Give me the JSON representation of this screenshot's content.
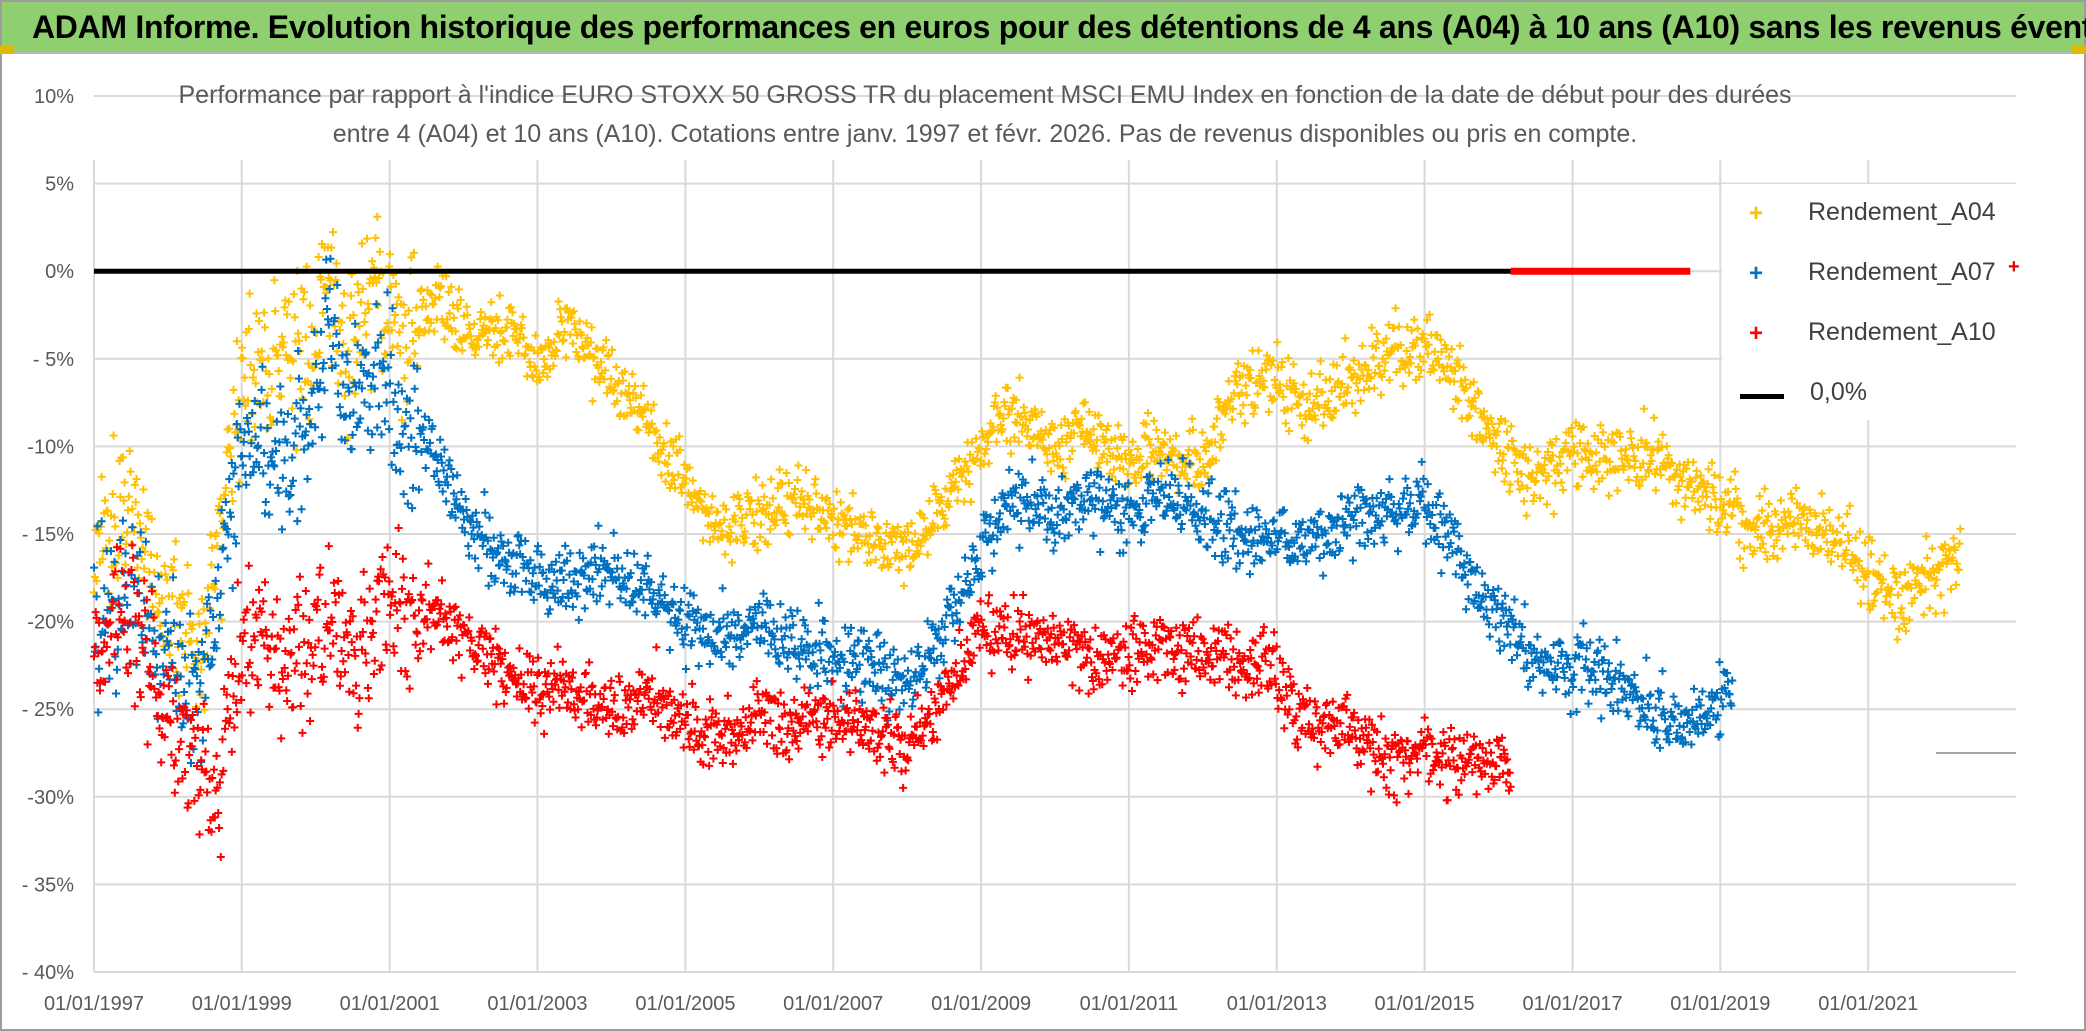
{
  "banner": {
    "text": "ADAM Informe. Evolution historique des performances en euros pour des détentions de 4 ans (A04) à 10 ans (A10) sans les revenus éventuels"
  },
  "chart_data": {
    "type": "scatter",
    "title_line1": "Performance par rapport à l'indice EURO STOXX 50 GROSS TR  du placement MSCI EMU Index en fonction de la date de début pour des durées",
    "title_line2": "entre 4 (A04) et 10 ans (A10). Cotations entre janv. 1997 et févr. 2026. Pas de revenus disponibles ou pris en compte.",
    "ylim": [
      -40,
      10
    ],
    "y_ticks": [
      "10%",
      "5%",
      "0%",
      "- 5%",
      "-10%",
      "- 15%",
      "-20%",
      "- 25%",
      "-30%",
      "- 35%",
      "- 40%"
    ],
    "x_ticks": [
      "01/01/1997",
      "01/01/1999",
      "01/01/2001",
      "01/01/2003",
      "01/01/2005",
      "01/01/2007",
      "01/01/2009",
      "01/01/2011",
      "01/01/2013",
      "01/01/2015",
      "01/01/2017",
      "01/01/2019",
      "01/01/2021"
    ],
    "x_range": [
      "1997-01-01",
      "2023-01-01"
    ],
    "marker": "+",
    "grid": true,
    "legend_position": "top-right",
    "legend": {
      "a04": "Rendement_A04",
      "a07": "Rendement_A07",
      "a10": "Rendement_A10",
      "zero": "0,0%"
    },
    "colors": {
      "a04": "#ffc000",
      "a07": "#0070c0",
      "a10": "#ff0000",
      "zero": "#000000",
      "grid": "#d9d9d9",
      "axis_text": "#595959"
    },
    "series": [
      {
        "name": "Rendement_A04",
        "end": "2022-04-01",
        "x": [
          "1997-01-01",
          "1997-07-01",
          "1998-01-01",
          "1998-06-01",
          "1998-09-01",
          "1999-01-01",
          "1999-06-01",
          "1999-12-01",
          "2000-03-01",
          "2000-06-01",
          "2000-10-01",
          "2001-03-01",
          "2001-09-01",
          "2002-03-01",
          "2002-09-01",
          "2003-01-01",
          "2003-06-01",
          "2004-01-01",
          "2004-06-01",
          "2005-01-01",
          "2005-06-01",
          "2006-01-01",
          "2006-06-01",
          "2007-01-01",
          "2007-06-01",
          "2008-01-01",
          "2008-06-01",
          "2009-01-01",
          "2009-06-01",
          "2010-01-01",
          "2010-06-01",
          "2011-01-01",
          "2011-06-01",
          "2012-01-01",
          "2012-06-01",
          "2013-01-01",
          "2013-06-01",
          "2014-01-01",
          "2014-06-01",
          "2015-01-01",
          "2015-06-01",
          "2016-01-01",
          "2016-06-01",
          "2017-01-01",
          "2017-06-01",
          "2018-01-01",
          "2018-06-01",
          "2019-01-01",
          "2019-06-01",
          "2020-01-01",
          "2020-06-01",
          "2021-01-01",
          "2021-06-01",
          "2022-01-01",
          "2022-04-01"
        ],
        "y": [
          -17,
          -13,
          -20,
          -21,
          -16,
          -7,
          -5,
          -4,
          0,
          -6,
          -1,
          -3,
          -2,
          -4,
          -3,
          -5,
          -3,
          -6,
          -8,
          -12,
          -15,
          -14,
          -13,
          -14,
          -15,
          -16,
          -14,
          -10,
          -8,
          -10,
          -9,
          -11,
          -10,
          -11,
          -7,
          -6,
          -8,
          -6,
          -5,
          -4,
          -6,
          -10,
          -12,
          -10,
          -11,
          -10,
          -12,
          -13,
          -15,
          -14,
          -15,
          -17,
          -19,
          -17,
          -16
        ]
      },
      {
        "name": "Rendement_A07",
        "end": "2019-03-01",
        "x": [
          "1997-01-01",
          "1997-07-01",
          "1998-01-01",
          "1998-06-01",
          "1998-09-01",
          "1999-01-01",
          "1999-06-01",
          "1999-12-01",
          "2000-03-01",
          "2000-06-01",
          "2000-10-01",
          "2001-03-01",
          "2001-09-01",
          "2002-03-01",
          "2002-09-01",
          "2003-01-01",
          "2003-06-01",
          "2004-01-01",
          "2004-06-01",
          "2005-01-01",
          "2005-06-01",
          "2006-01-01",
          "2006-06-01",
          "2007-01-01",
          "2007-06-01",
          "2008-01-01",
          "2008-06-01",
          "2009-01-01",
          "2009-06-01",
          "2010-01-01",
          "2010-06-01",
          "2011-01-01",
          "2011-06-01",
          "2012-01-01",
          "2012-06-01",
          "2013-01-01",
          "2013-06-01",
          "2014-01-01",
          "2014-06-01",
          "2015-01-01",
          "2015-06-01",
          "2016-01-01",
          "2016-06-01",
          "2017-01-01",
          "2017-06-01",
          "2018-01-01",
          "2018-06-01",
          "2019-01-01",
          "2019-03-01"
        ],
        "y": [
          -20,
          -18,
          -22,
          -24,
          -19,
          -10,
          -11,
          -9,
          -4,
          -8,
          -6,
          -8,
          -11,
          -15,
          -17,
          -17,
          -18,
          -17,
          -18,
          -20,
          -21,
          -20,
          -21,
          -22,
          -22,
          -24,
          -21,
          -16,
          -13,
          -14,
          -13,
          -14,
          -13,
          -14,
          -15,
          -15,
          -16,
          -14,
          -14,
          -13,
          -16,
          -20,
          -22,
          -23,
          -23,
          -25,
          -26,
          -25,
          -24
        ]
      },
      {
        "name": "Rendement_A10",
        "end": "2016-03-01",
        "x": [
          "1997-01-01",
          "1997-07-01",
          "1998-01-01",
          "1998-06-01",
          "1998-09-01",
          "1999-01-01",
          "1999-06-01",
          "1999-12-01",
          "2000-03-01",
          "2000-06-01",
          "2000-10-01",
          "2001-03-01",
          "2001-09-01",
          "2002-03-01",
          "2002-09-01",
          "2003-01-01",
          "2003-06-01",
          "2004-01-01",
          "2004-06-01",
          "2005-01-01",
          "2005-06-01",
          "2006-01-01",
          "2006-06-01",
          "2007-01-01",
          "2007-06-01",
          "2008-01-01",
          "2008-06-01",
          "2009-01-01",
          "2009-06-01",
          "2010-01-01",
          "2010-06-01",
          "2011-01-01",
          "2011-06-01",
          "2012-01-01",
          "2012-06-01",
          "2013-01-01",
          "2013-06-01",
          "2014-01-01",
          "2014-06-01",
          "2015-01-01",
          "2015-06-01",
          "2016-01-01",
          "2016-03-01"
        ],
        "y": [
          -22,
          -19,
          -25,
          -28,
          -30,
          -20,
          -22,
          -23,
          -20,
          -21,
          -21,
          -19,
          -20,
          -21,
          -23,
          -24,
          -24,
          -25,
          -24,
          -26,
          -27,
          -25,
          -26,
          -25,
          -26,
          -27,
          -25,
          -20,
          -21,
          -21,
          -22,
          -22,
          -21,
          -22,
          -22,
          -23,
          -26,
          -26,
          -28,
          -27,
          -28,
          -28,
          -29
        ]
      },
      {
        "name": "0,0%",
        "x": [
          "1997-01-01",
          "2019-01-01"
        ],
        "y": [
          0,
          0
        ]
      }
    ]
  }
}
